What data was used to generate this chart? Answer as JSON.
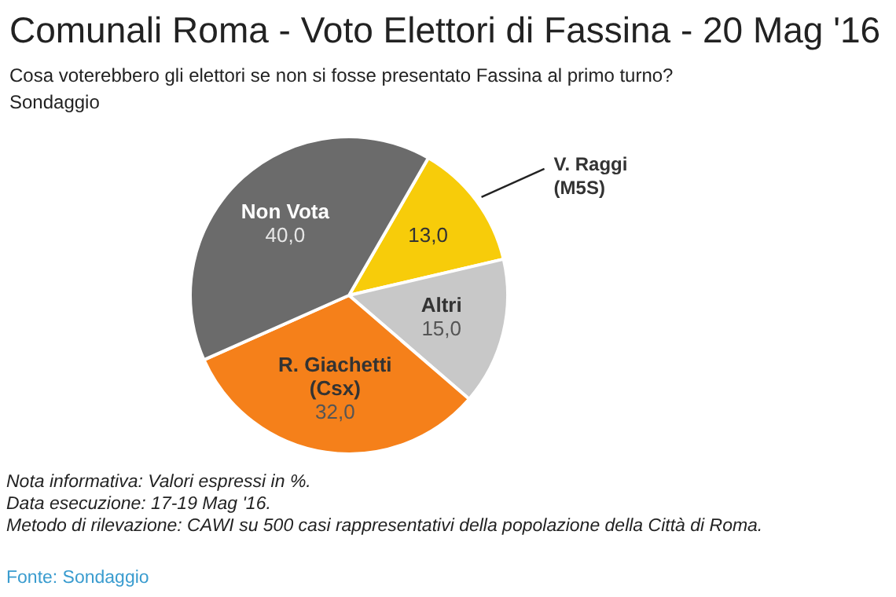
{
  "chart_data": {
    "type": "pie",
    "title": "Comunali Roma - Voto Elettori di Fassina - 20 Mag '16",
    "subtitle": "Cosa voterebbero gli elettori se non si fosse presentato Fassina al primo turno?\nSondaggio",
    "categories": [
      "V. Raggi (M5S)",
      "Altri",
      "R. Giachetti (Csx)",
      "Non Vota"
    ],
    "values": [
      13,
      15,
      32,
      40
    ],
    "value_labels": [
      "13,0",
      "15,0",
      "32,0",
      "40,0"
    ],
    "colors": [
      "#f7cc0a",
      "#c8c8c8",
      "#f5801a",
      "#6b6b6b"
    ],
    "legend": false,
    "annotations": [
      "Nota informativa: Valori espressi in %.",
      "Data esecuzione: 17-19 Mag '16.",
      "Metodo di rilevazione: CAWI su 500 casi rappresentativi della popolazione della Città di Roma.",
      "Fonte: Sondaggio"
    ]
  }
}
